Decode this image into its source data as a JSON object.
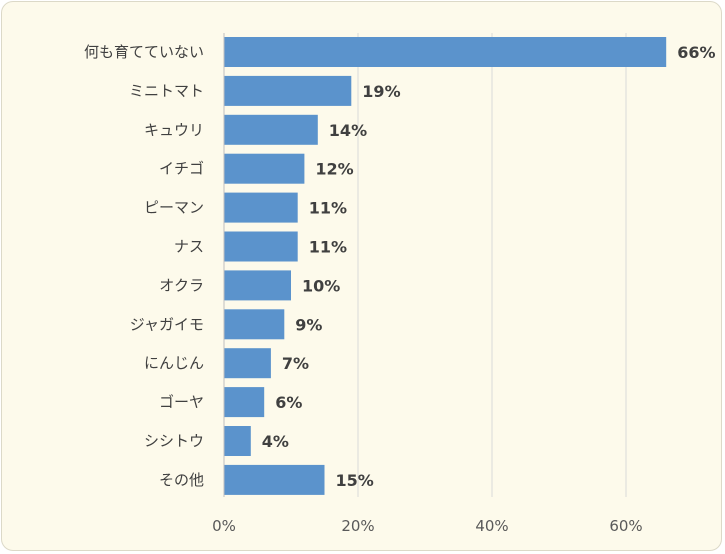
{
  "chart_data": {
    "type": "bar",
    "orientation": "horizontal",
    "categories": [
      "何も育てていない",
      "ミニトマト",
      "キュウリ",
      "イチゴ",
      "ピーマン",
      "ナス",
      "オクラ",
      "ジャガイモ",
      "にんじん",
      "ゴーヤ",
      "シシトウ",
      "その他"
    ],
    "values": [
      66,
      19,
      14,
      12,
      11,
      11,
      10,
      9,
      7,
      6,
      4,
      15
    ],
    "value_labels": [
      "66%",
      "19%",
      "14%",
      "12%",
      "11%",
      "11%",
      "10%",
      "9%",
      "7%",
      "6%",
      "4%",
      "15%"
    ],
    "xticks": [
      0,
      20,
      40,
      60
    ],
    "xtick_labels": [
      "0%",
      "20%",
      "40%",
      "60%"
    ],
    "xlim": [
      0,
      70
    ],
    "grid": "vertical",
    "bar_color": "#5b93cc",
    "background_color": "#fdfaeb"
  }
}
